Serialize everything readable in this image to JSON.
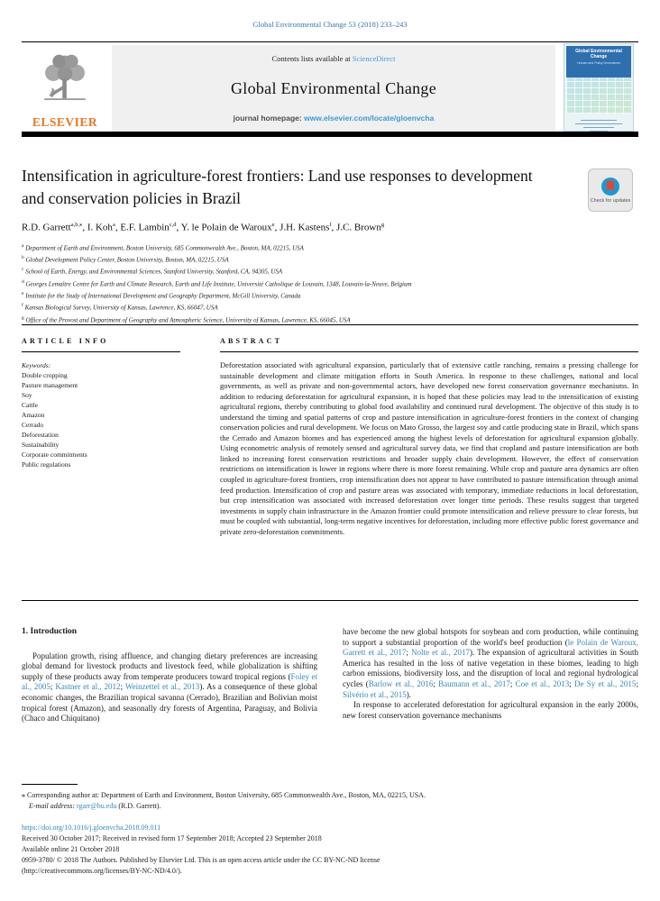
{
  "colors": {
    "link_blue": "#3a9bd5",
    "citation_blue": "#3688b8",
    "elsevier_orange": "#e87722",
    "cover_blue": "#2e6fb0",
    "bar_black": "#000000"
  },
  "top_citation": "Global Environmental Change 53 (2018) 233–243",
  "masthead": {
    "contents_prefix": "Contents lists available at ",
    "contents_link": "ScienceDirect",
    "journal_title": "Global Environmental Change",
    "homepage_prefix": "journal homepage: ",
    "homepage_link": "www.elsevier.com/locate/gloenvcha",
    "elsevier_logo_text": "ELSEVIER",
    "cover": {
      "title": "Global Environmental Change",
      "subtitle": "Human and Policy Dimensions"
    }
  },
  "article": {
    "title": "Intensification in agriculture-forest frontiers: Land use responses to development and conservation policies in Brazil",
    "badge_label": "Check for updates",
    "authors": [
      {
        "name": "R.D. Garrett",
        "sup": "a,b,⁎"
      },
      {
        "name": "I. Koh",
        "sup": "a"
      },
      {
        "name": "E.F. Lambin",
        "sup": "c,d"
      },
      {
        "name": "Y. le Polain de Waroux",
        "sup": "e"
      },
      {
        "name": "J.H. Kastens",
        "sup": "f"
      },
      {
        "name": "J.C. Brown",
        "sup": "g"
      }
    ],
    "affiliations": [
      {
        "sup": "a",
        "text": "Department of Earth and Environment, Boston University, 685 Commonwealth Ave., Boston, MA, 02215, USA"
      },
      {
        "sup": "b",
        "text": "Global Development Policy Center, Boston University, Boston, MA, 02215, USA"
      },
      {
        "sup": "c",
        "text": "School of Earth, Energy, and Environmental Sciences, Stanford University, Stanford, CA, 94305, USA"
      },
      {
        "sup": "d",
        "text": "Georges Lemaître Centre for Earth and Climate Research, Earth and Life Institute, Université Catholique de Louvain, 1348, Louvain-la-Neuve, Belgium"
      },
      {
        "sup": "e",
        "text": "Institute for the Study of International Development and Geography Department, McGill University, Canada"
      },
      {
        "sup": "f",
        "text": "Kansas Biological Survey, University of Kansas, Lawrence, KS, 66047, USA"
      },
      {
        "sup": "g",
        "text": "Office of the Provost and Department of Geography and Atmospheric Science, University of Kansas, Lawrence, KS, 66045, USA"
      }
    ]
  },
  "article_info": {
    "heading": "ARTICLE INFO",
    "keywords_label": "Keywords:",
    "keywords": [
      "Double cropping",
      "Pasture management",
      "Soy",
      "Cattle",
      "Amazon",
      "Cerrado",
      "Deforestation",
      "Sustainability",
      "Corporate commitments",
      "Public regulations"
    ]
  },
  "abstract": {
    "heading": "ABSTRACT",
    "text": "Deforestation associated with agricultural expansion, particularly that of extensive cattle ranching, remains a pressing challenge for sustainable development and climate mitigation efforts in South America. In response to these challenges, national and local governments, as well as private and non-governmental actors, have developed new forest conservation governance mechanisms. In addition to reducing deforestation for agricultural expansion, it is hoped that these policies may lead to the intensification of existing agricultural regions, thereby contributing to global food availability and continued rural development. The objective of this study is to understand the timing and spatial patterns of crop and pasture intensification in agriculture-forest frontiers in the context of changing conservation policies and rural development. We focus on Mato Grosso, the largest soy and cattle producing state in Brazil, which spans the Cerrado and Amazon biomes and has experienced among the highest levels of deforestation for agricultural expansion globally. Using econometric analysis of remotely sensed and agricultural survey data, we find that cropland and pasture intensification are both linked to increasing forest conservation restrictions and broader supply chain development. However, the effect of conservation restrictions on intensification is lower in regions where there is more forest remaining. While crop and pasture area dynamics are often coupled in agriculture-forest frontiers, crop intensification does not appear to have contributed to pasture intensification through animal feed production. Intensification of crop and pasture areas was associated with temporary, immediate reductions in local deforestation, but crop intensification was associated with increased deforestation over longer time periods. These results suggest that targeted investments in supply chain infrastructure in the Amazon frontier could promote intensification and relieve pressure to clear forests, but must be coupled with substantial, long-term negative incentives for deforestation, including more effective public forest governance and private zero-deforestation commitments."
  },
  "intro": {
    "heading": "1. Introduction",
    "col1_para1": [
      {
        "t": "Population growth, rising affluence, and changing dietary preferences are increasing global demand for livestock products and livestock feed, while globalization is shifting supply of these products away from temperate producers toward tropical regions ("
      },
      {
        "t": "Foley et al., 2005",
        "link": true
      },
      {
        "t": "; "
      },
      {
        "t": "Kastner et al., 2012",
        "link": true
      },
      {
        "t": "; "
      },
      {
        "t": "Weinzettel et al., 2013",
        "link": true
      },
      {
        "t": "). As a consequence of these global economic changes, the Brazilian tropical savanna (Cerrado), Brazilian and Bolivian moist tropical forest (Amazon), and seasonally dry forests of Argentina, Paraguay, and Bolivia (Chaco and Chiquitano)"
      }
    ],
    "col2_para1": [
      {
        "t": "have become the new global hotspots for soybean and corn production, while continuing to support a substantial proportion of the world's beef production ("
      },
      {
        "t": "le Polain de Waroux, Garrett et al., 2017",
        "link": true
      },
      {
        "t": "; "
      },
      {
        "t": "Nolte et al., 2017",
        "link": true
      },
      {
        "t": "). The expansion of agricultural activities in South America has resulted in the loss of native vegetation in these biomes, leading to high carbon emissions, biodiversity loss, and the disruption of local and regional hydrological cycles ("
      },
      {
        "t": "Barlow et al., 2016",
        "link": true
      },
      {
        "t": "; "
      },
      {
        "t": "Baumann et al., 2017",
        "link": true
      },
      {
        "t": "; "
      },
      {
        "t": "Coe et al., 2013",
        "link": true
      },
      {
        "t": "; "
      },
      {
        "t": "De Sy et al., 2015",
        "link": true
      },
      {
        "t": "; "
      },
      {
        "t": "Silvério et al., 2015",
        "link": true
      },
      {
        "t": ")."
      }
    ],
    "col2_para2": "In response to accelerated deforestation for agricultural expansion in the early 2000s, new forest conservation governance mechanisms"
  },
  "footnote": {
    "corresponding": "⁎ Corresponding author at: Department of Earth and Environment, Boston University, 685 Commonwealth Ave., Boston, MA, 02215, USA.",
    "email_label": "E-mail address:",
    "email": "rgarr@bu.edu",
    "email_suffix": " (R.D. Garrett)."
  },
  "footer": {
    "doi": "https://doi.org/10.1016/j.gloenvcha.2018.09.011",
    "received": "Received 30 October 2017; Received in revised form 17 September 2018; Accepted 23 September 2018",
    "available": "Available online 21 October 2018",
    "copyright": "0959-3780/ © 2018 The Authors. Published by Elsevier Ltd. This is an open access article under the CC BY-NC-ND license",
    "license": "(http://creativecommons.org/licenses/BY-NC-ND/4.0/)."
  }
}
